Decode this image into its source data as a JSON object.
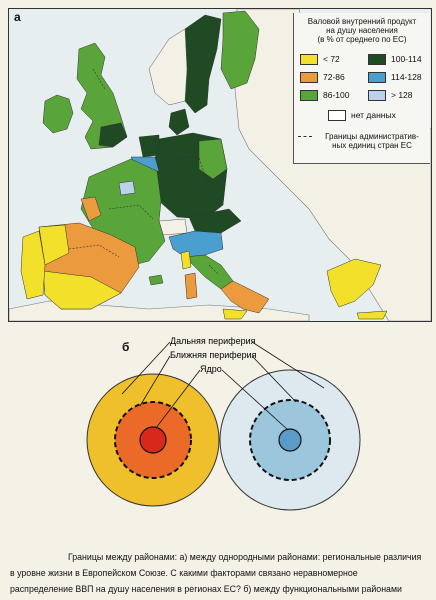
{
  "panel_a": {
    "letter": "а"
  },
  "panel_b": {
    "letter": "б"
  },
  "legend": {
    "title_lines": [
      "Валовой внутренний продукт",
      "на душу населения",
      "(в % от среднего по ЕС)"
    ],
    "items": [
      {
        "label": "< 72",
        "color": "#f2e02a"
      },
      {
        "label": "100-114",
        "color": "#1f4a24"
      },
      {
        "label": "72-86",
        "color": "#ec9a3e"
      },
      {
        "label": "114-128",
        "color": "#4a9fd0"
      },
      {
        "label": "86-100",
        "color": "#5aa53a"
      },
      {
        "label": "> 128",
        "color": "#bcd2ea"
      },
      {
        "label": "нет данных",
        "color": "#ffffff"
      }
    ],
    "border_note_lines": [
      "Границы административ-",
      "ных единиц стран ЕС"
    ]
  },
  "map": {
    "sea_color": "#e6eef0",
    "nonmember_color": "#f3f0e6"
  },
  "diagram": {
    "labels": {
      "far_periphery": "Дальняя периферия",
      "near_periphery": "Ближняя периферия",
      "core": "Ядро"
    },
    "left_colors": {
      "outer": "#efc02c",
      "middle": "#ec6a28",
      "inner": "#d8281a"
    },
    "right_colors": {
      "outer": "#dde9ee",
      "middle": "#9cc6dc",
      "inner": "#5a9cc8"
    }
  },
  "caption": {
    "lines": [
      "Границы между районами: а)  между однородными районами: региональные различия",
      "в  уровне  жизни  в  Европейском  Союзе.  С  какими  факторами  связано  неравномерное",
      "распределение ВВП на душу населения в регионах ЕС? б) между функциональными районами"
    ]
  }
}
